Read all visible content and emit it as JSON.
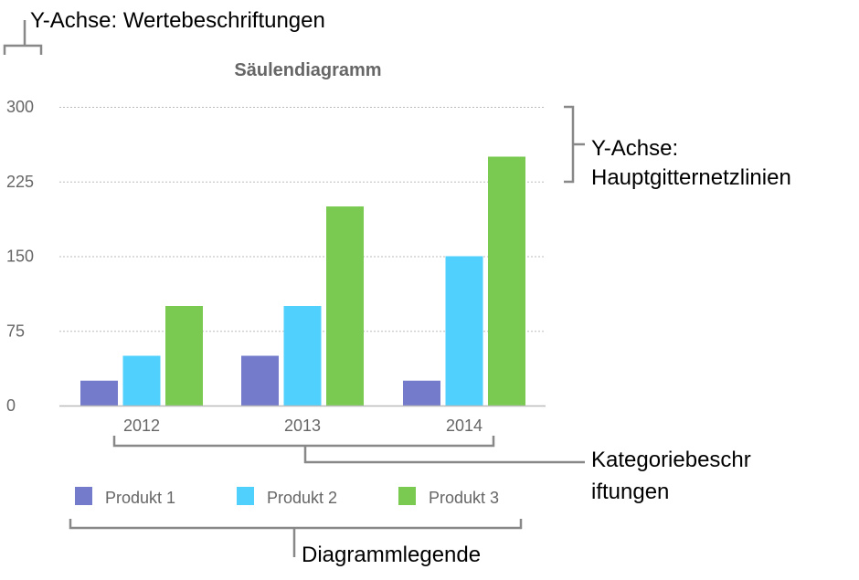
{
  "chart_data": {
    "type": "bar",
    "title": "Säulendiagramm",
    "categories": [
      "2012",
      "2013",
      "2014"
    ],
    "series": [
      {
        "name": "Produkt 1",
        "values": [
          25,
          50,
          25
        ],
        "color": "#747BCB"
      },
      {
        "name": "Produkt 2",
        "values": [
          50,
          100,
          150
        ],
        "color": "#4FD0FD"
      },
      {
        "name": "Produkt 3",
        "values": [
          100,
          200,
          250
        ],
        "color": "#7AC950"
      }
    ],
    "ylim": [
      0,
      300
    ],
    "yticks": [
      "0",
      "75",
      "150",
      "225",
      "300"
    ],
    "grid": true,
    "legend_position": "bottom"
  },
  "callouts": {
    "y_axis_labels": "Y-Achse: Wertebeschriftungen",
    "gridlines_line1": "Y-Achse:",
    "gridlines_line2": "Hauptgitternetzlinien",
    "category_line1": "Kategoriebeschr",
    "category_line2": "iftungen",
    "legend": "Diagrammlegende"
  }
}
